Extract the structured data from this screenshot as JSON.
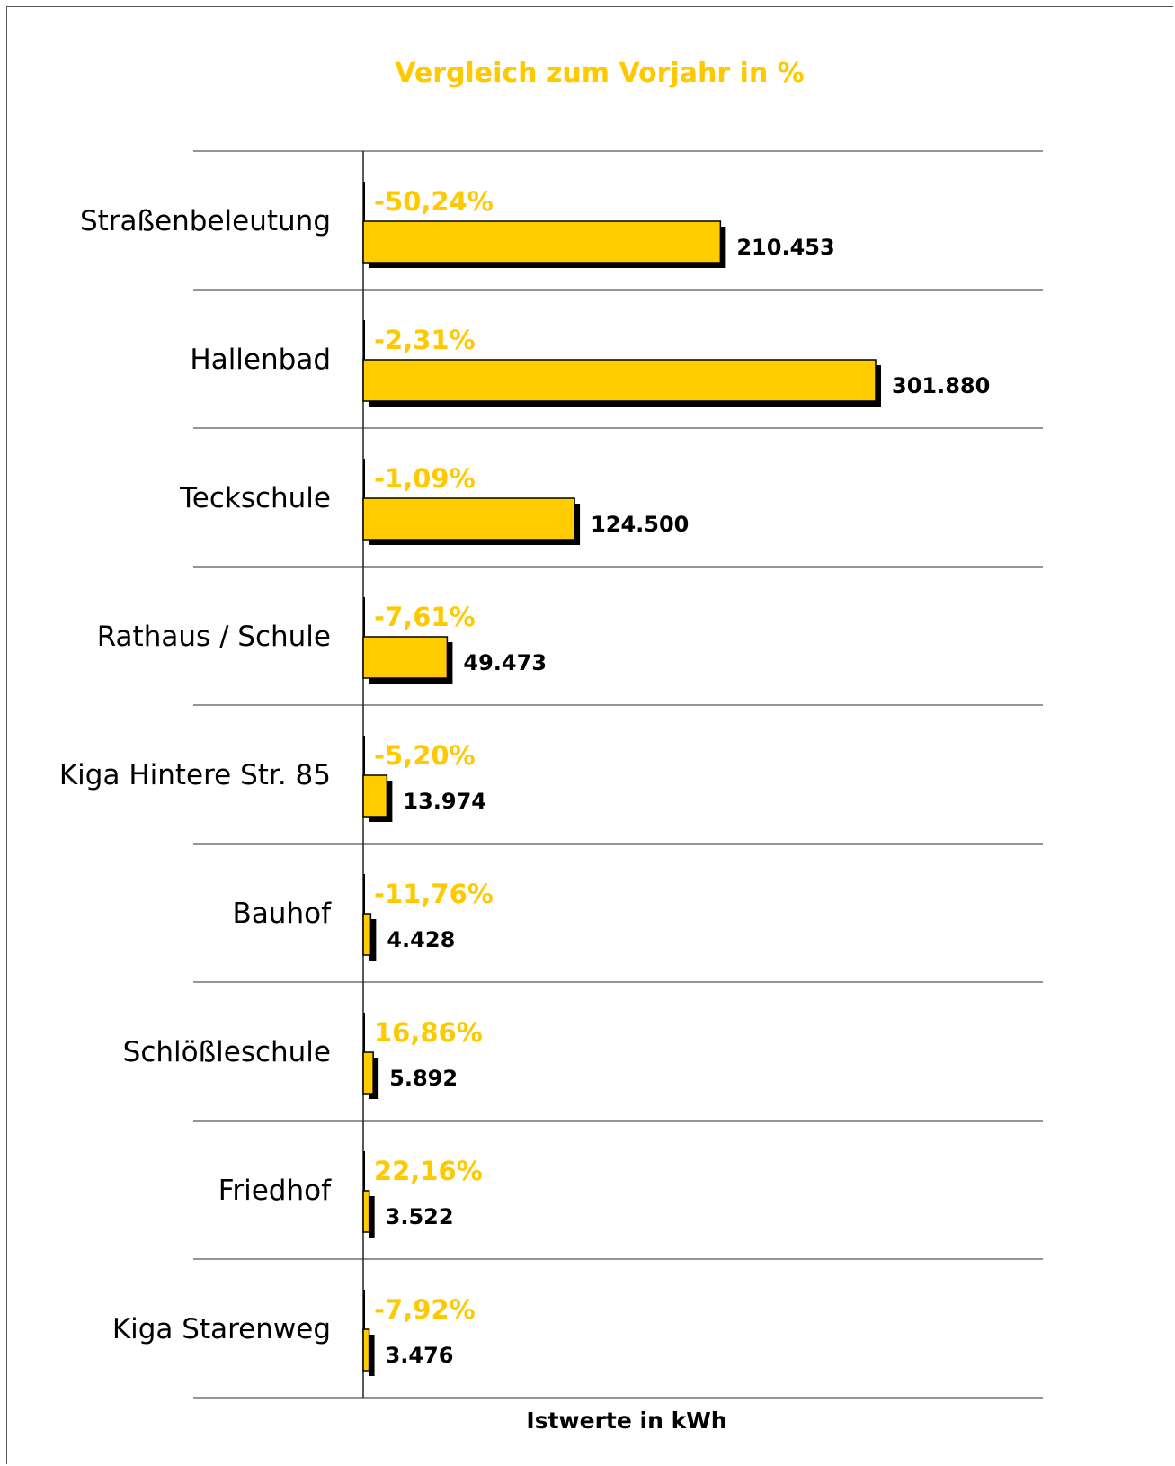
{
  "chart_data": {
    "type": "bar",
    "orientation": "horizontal",
    "title": "Vergleich zum Vorjahr in %",
    "xlabel": "Istwerte in kWh",
    "ylabel": "",
    "grid": "horizontal separators",
    "colors": {
      "bar": "#ffcc00",
      "shadow": "#000000",
      "percent_label": "#ffc900",
      "value_label": "#000000",
      "separator": "#555555"
    },
    "categories": [
      "Straßenbeleutung",
      "Hallenbad",
      "Teckschule",
      "Rathaus / Schule",
      "Kiga Hintere Str. 85",
      "Bauhof",
      "Schlößleschule",
      "Friedhof",
      "Kiga Starenweg"
    ],
    "values": [
      210453,
      301880,
      124500,
      49473,
      13974,
      4428,
      5892,
      3522,
      3476
    ],
    "value_labels": [
      "210.453",
      "301.880",
      "124.500",
      "49.473",
      "13.974",
      "4.428",
      "5.892",
      "3.522",
      "3.476"
    ],
    "percent_change": [
      -50.24,
      -2.31,
      -1.09,
      -7.61,
      -5.2,
      -11.76,
      16.86,
      22.16,
      -7.92
    ],
    "percent_labels": [
      "-50,24%",
      "-2,31%",
      "-1,09%",
      "-7,61%",
      "-5,20%",
      "-11,76%",
      "16,86%",
      "22,16%",
      "-7,92%"
    ],
    "xlim": [
      0,
      330000
    ]
  }
}
